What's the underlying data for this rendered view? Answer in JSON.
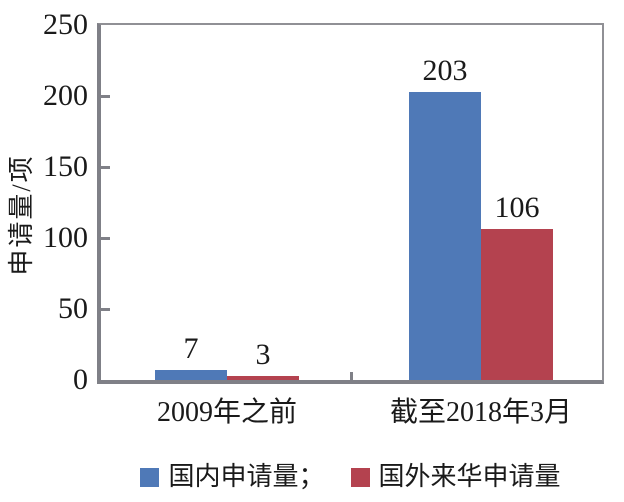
{
  "chart_data": {
    "type": "bar",
    "categories": [
      "2009年之前",
      "截至2018年3月"
    ],
    "series": [
      {
        "name": "国内申请量",
        "values": [
          7,
          203
        ],
        "color": "#4F79B7"
      },
      {
        "name": "国外来华申请量",
        "values": [
          3,
          106
        ],
        "color": "#B4424F"
      }
    ],
    "legend_labels": [
      "国内申请量；",
      "国外来华申请量"
    ],
    "value_labels": [
      [
        "7",
        "3"
      ],
      [
        "203",
        "106"
      ]
    ],
    "title": "",
    "xlabel": "",
    "ylabel": "申请量/项",
    "ylim": [
      0,
      250
    ],
    "yticks": [
      0,
      50,
      100,
      150,
      200,
      250
    ],
    "grid": false,
    "legend_position": "bottom",
    "bar_annotations_shown": true
  },
  "colors": {
    "series_domestic": "#4F79B7",
    "series_foreign": "#B4424F",
    "axis_line": "#7f8087",
    "frame_line": "#909095",
    "text": "#1a1a1a",
    "background": "#ffffff"
  }
}
